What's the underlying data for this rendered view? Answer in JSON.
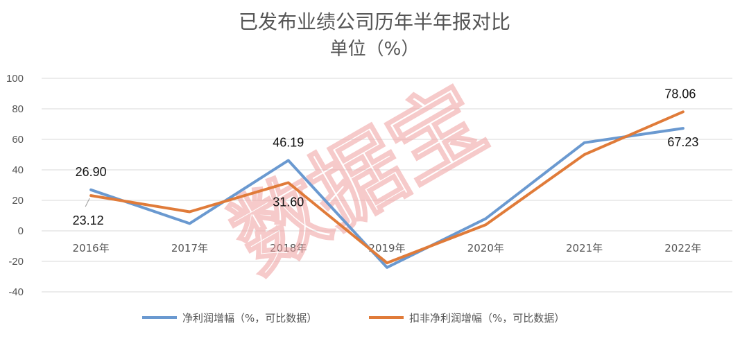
{
  "chart_data": {
    "type": "line",
    "title": "已发布业绩公司历年半年报对比",
    "subtitle": "单位（%）",
    "categories": [
      "2016年",
      "2017年",
      "2018年",
      "2019年",
      "2020年",
      "2021年",
      "2022年"
    ],
    "ylim": [
      -40,
      100
    ],
    "yticks": [
      -40,
      -20,
      0,
      20,
      40,
      60,
      80,
      100
    ],
    "grid": true,
    "legend": "bottom",
    "series": [
      {
        "name": "净利润增幅（%，可比数据）",
        "color": "#6a99d0",
        "values": [
          26.9,
          4.8,
          46.19,
          -24.0,
          8.0,
          57.8,
          67.23
        ],
        "labels": [
          "26.90",
          "",
          "46.19",
          "",
          "",
          "",
          "67.23"
        ]
      },
      {
        "name": "扣非净利润增幅（%，可比数据）",
        "color": "#e07b39",
        "values": [
          23.12,
          12.5,
          31.6,
          -21.0,
          4.0,
          50.0,
          78.06
        ],
        "labels": [
          "23.12",
          "",
          "31.60",
          "",
          "",
          "",
          "78.06"
        ]
      }
    ]
  },
  "watermark": "数据宝"
}
